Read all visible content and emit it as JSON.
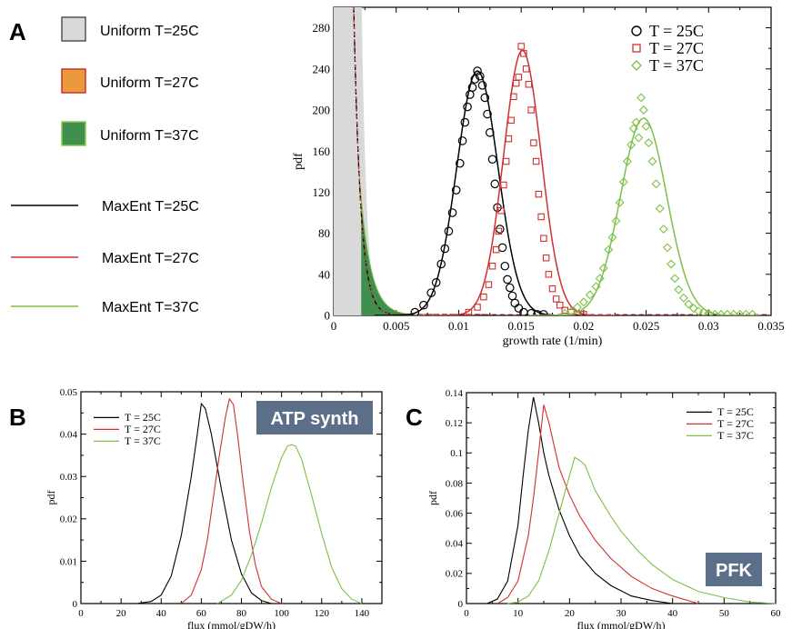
{
  "panel_labels": {
    "a": "A",
    "b": "B",
    "c": "C"
  },
  "legend_a": {
    "items": [
      {
        "kind": "swatch",
        "label": "Uniform T=25C",
        "fill": "#d9d9d9",
        "stroke": "#555555"
      },
      {
        "kind": "swatch",
        "label": "Uniform T=27C",
        "fill": "#e89a3c",
        "stroke": "#d03030"
      },
      {
        "kind": "swatch",
        "label": "Uniform T=37C",
        "fill": "#3f8f4f",
        "stroke": "#8cc84b"
      },
      {
        "kind": "line",
        "label": "MaxEnt T=25C",
        "color": "#000000"
      },
      {
        "kind": "line",
        "label": "MaxEnt T=27C",
        "color": "#d03030"
      },
      {
        "kind": "line",
        "label": "MaxEnt T=37C",
        "color": "#7cc04a"
      }
    ]
  },
  "colors": {
    "t25": "#000000",
    "t27": "#d03030",
    "t37": "#7cc04a",
    "gray": "#d9d9d9",
    "orange": "#e89a3c",
    "green": "#3f8f4f"
  },
  "chart_data": [
    {
      "id": "A",
      "type": "line",
      "xlabel": "growth rate (1/min)",
      "ylabel": "pdf",
      "xlim": [
        0,
        0.035
      ],
      "ylim": [
        0,
        300
      ],
      "xticks": [
        0,
        0.005,
        0.01,
        0.015,
        0.02,
        0.025,
        0.03,
        0.035
      ],
      "xtick_labels": [
        "0",
        "0.005",
        "0.01",
        "0.015",
        "0.02",
        "0.025",
        "0.03",
        "0.035"
      ],
      "yticks": [
        0,
        40,
        80,
        120,
        160,
        200,
        240,
        280
      ],
      "ytick_labels": [
        "0",
        "40",
        "80",
        "120",
        "160",
        "200",
        "240",
        "280"
      ],
      "legend": [
        "T = 25C",
        "T = 27C",
        "T = 37C"
      ],
      "legend_position": "top-right",
      "series": [
        {
          "name": "T = 25C",
          "marker": "circle",
          "color": "#000000",
          "fit": {
            "mean": 0.0115,
            "peak": 238,
            "sd": 0.00165
          },
          "points": [
            [
              0.0065,
              3
            ],
            [
              0.0072,
              10
            ],
            [
              0.0078,
              22
            ],
            [
              0.0082,
              32
            ],
            [
              0.0086,
              50
            ],
            [
              0.0089,
              65
            ],
            [
              0.0092,
              82
            ],
            [
              0.0095,
              100
            ],
            [
              0.0098,
              122
            ],
            [
              0.0101,
              148
            ],
            [
              0.0103,
              170
            ],
            [
              0.0105,
              188
            ],
            [
              0.0107,
              203
            ],
            [
              0.0109,
              215
            ],
            [
              0.0111,
              222
            ],
            [
              0.0113,
              230
            ],
            [
              0.0115,
              238
            ],
            [
              0.0117,
              233
            ],
            [
              0.0119,
              224
            ],
            [
              0.0121,
              212
            ],
            [
              0.0123,
              196
            ],
            [
              0.0125,
              178
            ],
            [
              0.0127,
              152
            ],
            [
              0.0129,
              128
            ],
            [
              0.0131,
              105
            ],
            [
              0.0133,
              84
            ],
            [
              0.0135,
              66
            ],
            [
              0.0137,
              48
            ],
            [
              0.0139,
              35
            ],
            [
              0.0141,
              27
            ],
            [
              0.0143,
              19
            ],
            [
              0.0145,
              12
            ],
            [
              0.0148,
              7
            ],
            [
              0.0152,
              3
            ],
            [
              0.0158,
              2
            ],
            [
              0.0163,
              1
            ],
            [
              0.0168,
              1
            ]
          ]
        },
        {
          "name": "T = 27C",
          "marker": "square",
          "color": "#d03030",
          "fit": {
            "mean": 0.0151,
            "peak": 258,
            "sd": 0.0015
          },
          "points": [
            [
              0.0108,
              3
            ],
            [
              0.0115,
              8
            ],
            [
              0.012,
              18
            ],
            [
              0.0124,
              30
            ],
            [
              0.0127,
              48
            ],
            [
              0.013,
              64
            ],
            [
              0.0132,
              82
            ],
            [
              0.0134,
              102
            ],
            [
              0.0136,
              127
            ],
            [
              0.0138,
              150
            ],
            [
              0.014,
              172
            ],
            [
              0.0142,
              190
            ],
            [
              0.0144,
              213
            ],
            [
              0.0146,
              226
            ],
            [
              0.0148,
              232
            ],
            [
              0.015,
              262
            ],
            [
              0.0152,
              255
            ],
            [
              0.0154,
              240
            ],
            [
              0.0156,
              225
            ],
            [
              0.0158,
              200
            ],
            [
              0.016,
              168
            ],
            [
              0.0162,
              150
            ],
            [
              0.0164,
              118
            ],
            [
              0.0166,
              96
            ],
            [
              0.0168,
              75
            ],
            [
              0.017,
              56
            ],
            [
              0.0172,
              40
            ],
            [
              0.0175,
              26
            ],
            [
              0.0178,
              16
            ],
            [
              0.0181,
              10
            ],
            [
              0.0185,
              5
            ],
            [
              0.019,
              3
            ],
            [
              0.0195,
              2
            ],
            [
              0.02,
              1
            ]
          ]
        },
        {
          "name": "T = 37C",
          "marker": "diamond",
          "color": "#7cc04a",
          "fit": {
            "mean": 0.0248,
            "peak": 192,
            "sd": 0.00185
          },
          "points": [
            [
              0.0185,
              2
            ],
            [
              0.019,
              4
            ],
            [
              0.0195,
              8
            ],
            [
              0.02,
              13
            ],
            [
              0.0205,
              20
            ],
            [
              0.021,
              28
            ],
            [
              0.0213,
              36
            ],
            [
              0.0216,
              46
            ],
            [
              0.022,
              64
            ],
            [
              0.0223,
              76
            ],
            [
              0.0226,
              92
            ],
            [
              0.0229,
              110
            ],
            [
              0.0232,
              130
            ],
            [
              0.0235,
              150
            ],
            [
              0.0238,
              166
            ],
            [
              0.024,
              182
            ],
            [
              0.0242,
              188
            ],
            [
              0.0244,
              173
            ],
            [
              0.0246,
              212
            ],
            [
              0.0248,
              200
            ],
            [
              0.025,
              184
            ],
            [
              0.0252,
              168
            ],
            [
              0.0255,
              150
            ],
            [
              0.0258,
              128
            ],
            [
              0.0261,
              104
            ],
            [
              0.0264,
              84
            ],
            [
              0.0267,
              66
            ],
            [
              0.027,
              50
            ],
            [
              0.0273,
              36
            ],
            [
              0.0276,
              25
            ],
            [
              0.028,
              17
            ],
            [
              0.0284,
              11
            ],
            [
              0.0288,
              7
            ],
            [
              0.0292,
              4
            ],
            [
              0.0296,
              3
            ],
            [
              0.03,
              2
            ],
            [
              0.0305,
              1
            ],
            [
              0.031,
              1
            ],
            [
              0.0315,
              1
            ],
            [
              0.032,
              1
            ],
            [
              0.0325,
              1
            ],
            [
              0.033,
              1
            ],
            [
              0.0335,
              1
            ]
          ]
        }
      ],
      "uniform_tails": [
        {
          "name": "Uniform T=25C",
          "color": "#d9d9d9",
          "x_end": 0.0045
        },
        {
          "name": "Uniform T=27C",
          "color": "#e89a3c",
          "x_end": 0.0048
        },
        {
          "name": "Uniform T=37C",
          "color": "#3f8f4f",
          "x_end": 0.0075
        }
      ]
    },
    {
      "id": "B",
      "type": "line",
      "title": "ATP synth",
      "xlabel": "flux (mmol/gDW/h)",
      "ylabel": "pdf",
      "xlim": [
        0,
        150
      ],
      "ylim": [
        0,
        0.05
      ],
      "xticks": [
        0,
        20,
        40,
        60,
        80,
        100,
        120,
        140
      ],
      "xtick_labels": [
        "0",
        "20",
        "40",
        "60",
        "80",
        "100",
        "120",
        "140"
      ],
      "yticks": [
        0,
        0.01,
        0.02,
        0.03,
        0.04,
        0.05
      ],
      "ytick_labels": [
        "0",
        "0.01",
        "0.02",
        "0.03",
        "0.04",
        "0.05"
      ],
      "legend": [
        "T = 25C",
        "T = 27C",
        "T = 37C"
      ],
      "legend_position": "top-left",
      "series": [
        {
          "name": "T = 25C",
          "color": "#000000",
          "x": [
            28,
            35,
            40,
            45,
            50,
            55,
            58,
            60,
            62,
            65,
            70,
            75,
            80,
            85,
            90,
            95
          ],
          "y": [
            0,
            0.0005,
            0.002,
            0.0065,
            0.016,
            0.03,
            0.04,
            0.0472,
            0.046,
            0.04,
            0.027,
            0.015,
            0.007,
            0.0025,
            0.0007,
            0
          ]
        },
        {
          "name": "T = 27C",
          "color": "#d03030",
          "x": [
            50,
            55,
            60,
            63,
            66,
            69,
            72,
            74,
            76,
            78,
            81,
            84,
            87,
            90,
            95,
            100
          ],
          "y": [
            0,
            0.002,
            0.008,
            0.015,
            0.025,
            0.035,
            0.044,
            0.0483,
            0.047,
            0.04,
            0.028,
            0.017,
            0.009,
            0.004,
            0.001,
            0
          ]
        },
        {
          "name": "T = 37C",
          "color": "#7cc04a",
          "x": [
            68,
            75,
            80,
            85,
            90,
            95,
            100,
            103,
            105,
            107,
            110,
            115,
            120,
            125,
            130,
            135,
            140
          ],
          "y": [
            0,
            0.002,
            0.0055,
            0.0115,
            0.019,
            0.0275,
            0.0345,
            0.0372,
            0.0375,
            0.0372,
            0.034,
            0.0255,
            0.0165,
            0.0085,
            0.0035,
            0.001,
            0
          ]
        }
      ]
    },
    {
      "id": "C",
      "type": "line",
      "title": "PFK",
      "xlabel": "flux (mmol/gDW/h)",
      "ylabel": "pdf",
      "xlim": [
        0,
        60
      ],
      "ylim": [
        0,
        0.14
      ],
      "xticks": [
        0,
        10,
        20,
        30,
        40,
        50,
        60
      ],
      "xtick_labels": [
        "0",
        "10",
        "20",
        "30",
        "40",
        "50",
        "60"
      ],
      "yticks": [
        0,
        0.02,
        0.04,
        0.06,
        0.08,
        0.1,
        0.12,
        0.14
      ],
      "ytick_labels": [
        "0",
        "0.02",
        "0.04",
        "0.06",
        "0.08",
        "0.1",
        "0.12",
        "0.14"
      ],
      "legend": [
        "T = 25C",
        "T = 27C",
        "T = 37C"
      ],
      "legend_position": "top-right",
      "series": [
        {
          "name": "T = 25C",
          "color": "#000000",
          "x": [
            4,
            6,
            8,
            10,
            11,
            12,
            13,
            14,
            15,
            16,
            18,
            20,
            22,
            25,
            28,
            32,
            36,
            40
          ],
          "y": [
            0,
            0.003,
            0.015,
            0.052,
            0.085,
            0.115,
            0.137,
            0.12,
            0.1,
            0.085,
            0.062,
            0.045,
            0.032,
            0.02,
            0.012,
            0.005,
            0.002,
            0
          ]
        },
        {
          "name": "T = 27C",
          "color": "#d03030",
          "x": [
            6,
            8,
            10,
            12,
            13,
            14,
            15,
            16,
            17,
            18,
            20,
            22,
            25,
            28,
            32,
            36,
            40,
            45
          ],
          "y": [
            0,
            0.004,
            0.015,
            0.045,
            0.07,
            0.1,
            0.132,
            0.12,
            0.105,
            0.09,
            0.072,
            0.058,
            0.042,
            0.03,
            0.018,
            0.01,
            0.005,
            0
          ]
        },
        {
          "name": "T = 37C",
          "color": "#7cc04a",
          "x": [
            8,
            10,
            12,
            14,
            16,
            18,
            20,
            21,
            22,
            23,
            25,
            28,
            30,
            33,
            36,
            40,
            45,
            50,
            55,
            60
          ],
          "y": [
            0,
            0.001,
            0.005,
            0.015,
            0.035,
            0.06,
            0.085,
            0.097,
            0.095,
            0.092,
            0.075,
            0.058,
            0.048,
            0.036,
            0.026,
            0.016,
            0.008,
            0.004,
            0.001,
            0
          ]
        }
      ]
    }
  ]
}
